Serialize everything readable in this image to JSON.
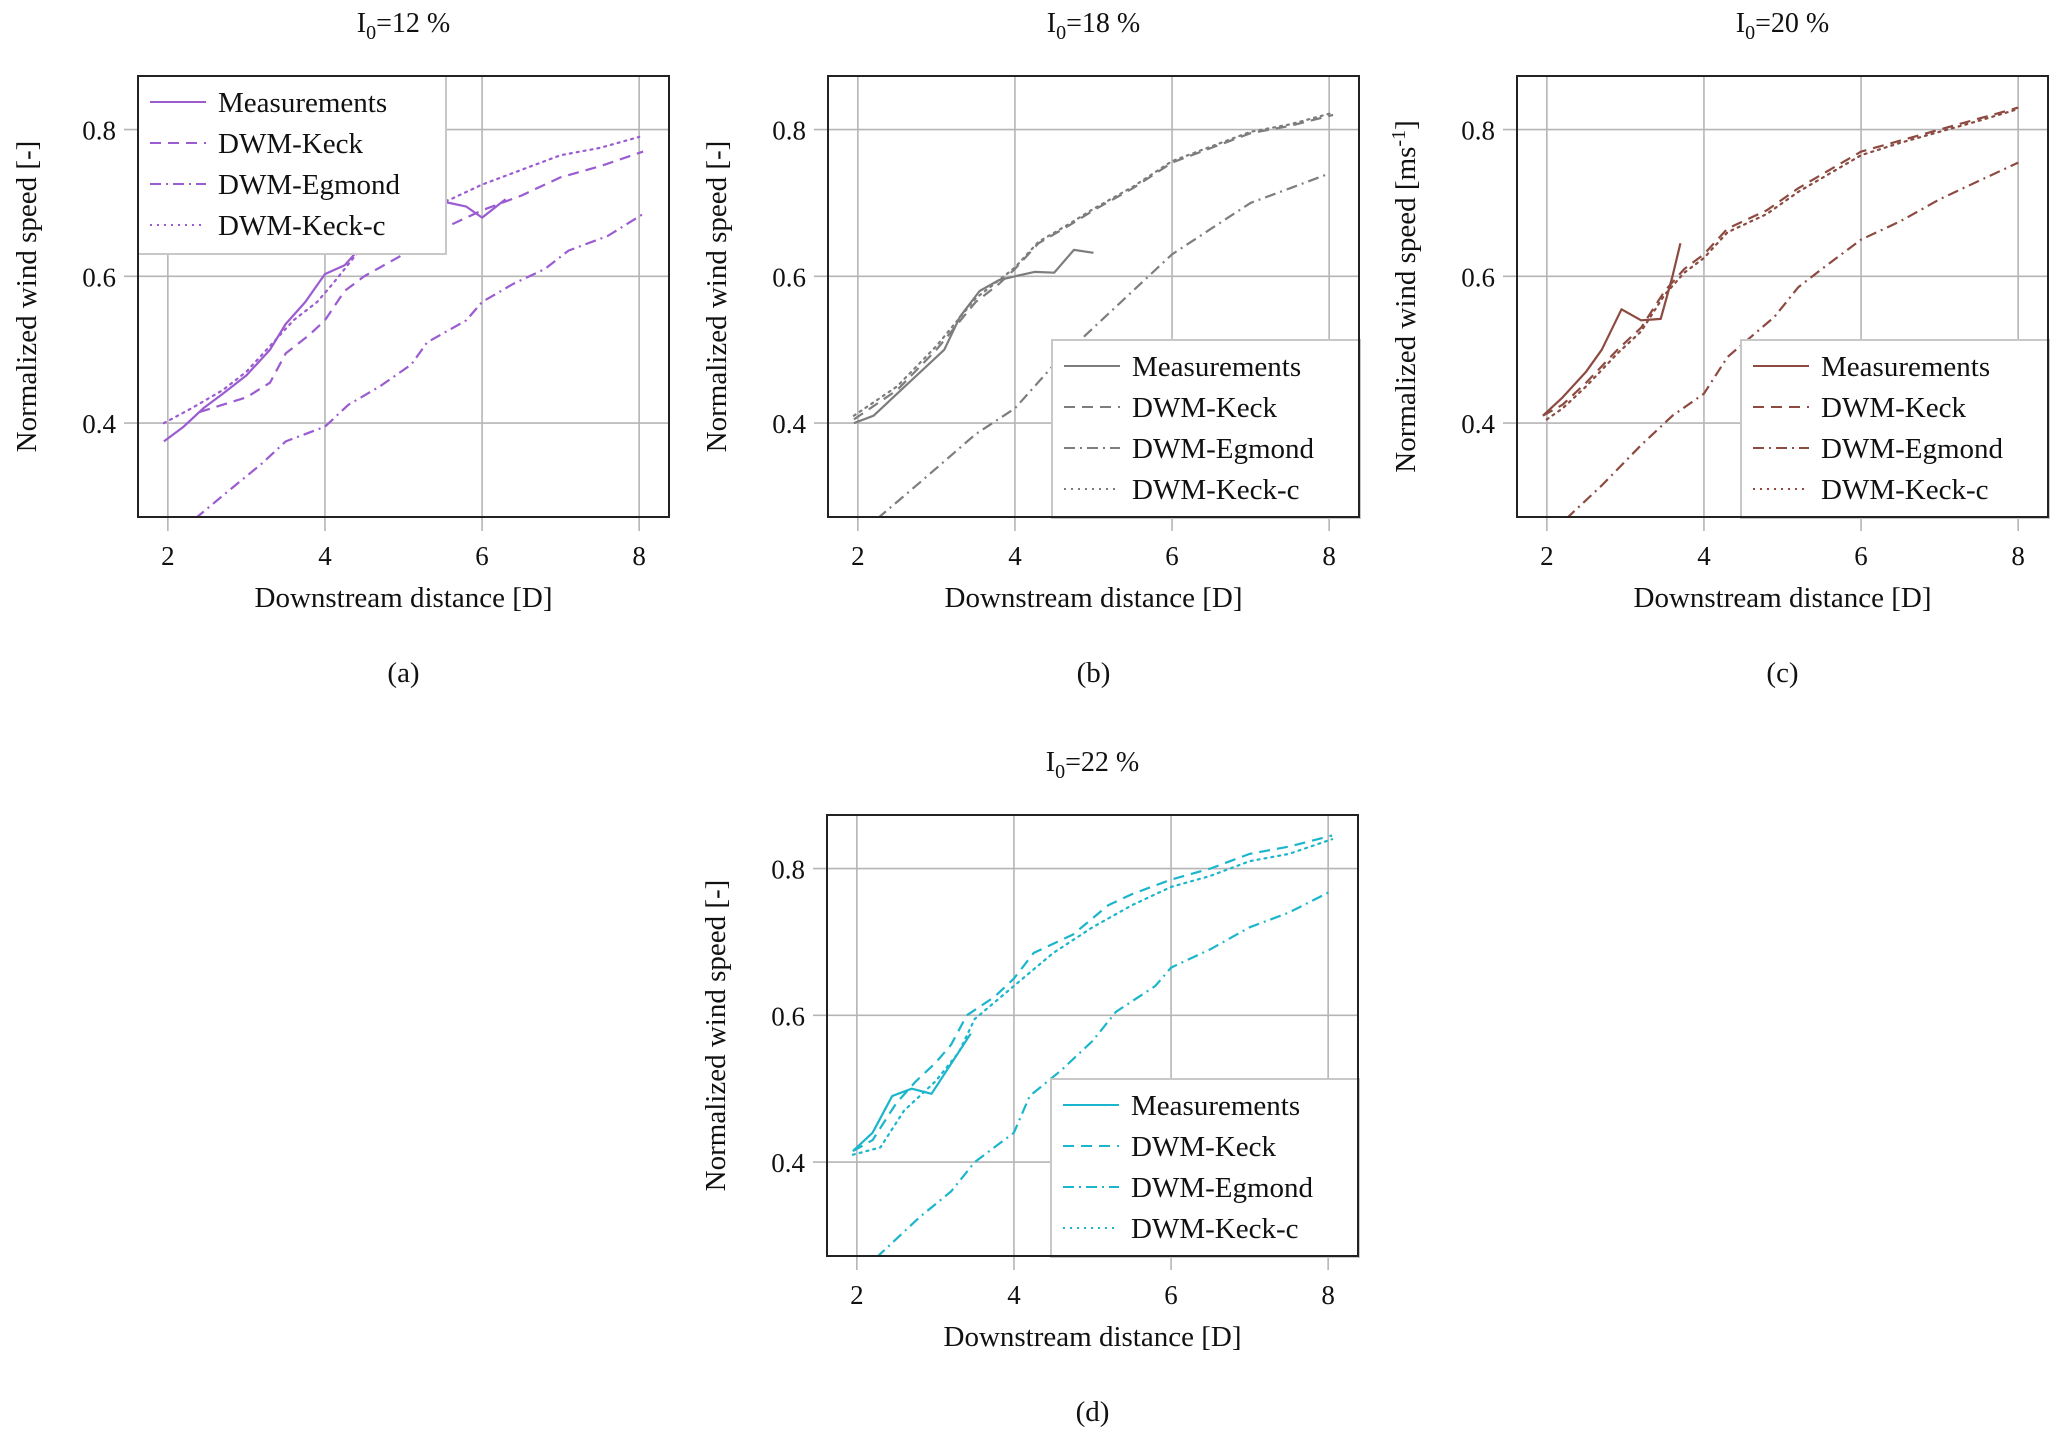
{
  "chart_data": [
    {
      "type": "line",
      "panel_label": "(a)",
      "title": "I0=12 %",
      "title_main": "I",
      "title_sub": "0",
      "title_rest": "=12 %",
      "xlabel": "Downstream distance [D]",
      "ylabel": "Normalized wind speed [-]",
      "ylabel_sup": "",
      "ylabel_end": "",
      "xlim": [
        1.62,
        8.38
      ],
      "ylim": [
        0.272,
        0.873
      ],
      "xticks": [
        2,
        4,
        6,
        8
      ],
      "yticks": [
        0.4,
        0.6,
        0.8
      ],
      "xtick_labels": [
        "2",
        "4",
        "6",
        "8"
      ],
      "ytick_labels": [
        "0.4",
        "0.6",
        "0.8"
      ],
      "grid": true,
      "legend_position": "top-left",
      "color": "#9b5bd1",
      "series": [
        {
          "name": "Measurements",
          "style": "solid",
          "x": [
            1.95,
            2.2,
            2.45,
            2.7,
            3.0,
            3.3,
            3.5,
            3.75,
            4.0,
            4.25,
            4.5,
            4.8,
            5.1,
            5.5,
            5.8,
            6.0,
            6.3
          ],
          "y": [
            0.375,
            0.395,
            0.42,
            0.44,
            0.465,
            0.5,
            0.535,
            0.565,
            0.603,
            0.615,
            0.645,
            0.67,
            0.69,
            0.702,
            0.695,
            0.68,
            0.705
          ]
        },
        {
          "name": "DWM-Keck",
          "style": "dashed",
          "x": [
            2.4,
            2.7,
            3.0,
            3.3,
            3.5,
            3.8,
            4.0,
            4.25,
            4.5,
            5.0,
            5.5,
            6.0,
            6.5,
            7.0,
            7.5,
            8.05
          ],
          "y": [
            0.415,
            0.425,
            0.435,
            0.455,
            0.495,
            0.52,
            0.54,
            0.58,
            0.6,
            0.63,
            0.665,
            0.69,
            0.71,
            0.735,
            0.75,
            0.77
          ]
        },
        {
          "name": "DWM-Egmond",
          "style": "dashdot",
          "x": [
            2.35,
            2.8,
            3.2,
            3.5,
            4.0,
            4.3,
            4.7,
            5.1,
            5.3,
            5.8,
            6.0,
            6.4,
            6.8,
            7.1,
            7.6,
            8.05
          ],
          "y": [
            0.27,
            0.31,
            0.345,
            0.375,
            0.395,
            0.425,
            0.45,
            0.48,
            0.51,
            0.54,
            0.565,
            0.59,
            0.61,
            0.635,
            0.655,
            0.685
          ]
        },
        {
          "name": "DWM-Keck-c",
          "style": "dotted",
          "x": [
            1.95,
            2.3,
            2.7,
            3.0,
            3.3,
            3.6,
            3.9,
            4.1,
            4.4,
            4.8,
            5.2,
            5.6,
            6.0,
            6.5,
            7.0,
            7.5,
            8.0
          ],
          "y": [
            0.4,
            0.42,
            0.445,
            0.47,
            0.505,
            0.54,
            0.565,
            0.59,
            0.63,
            0.665,
            0.69,
            0.705,
            0.725,
            0.745,
            0.765,
            0.775,
            0.79
          ]
        }
      ]
    },
    {
      "type": "line",
      "panel_label": "(b)",
      "title": "I0=18 %",
      "title_main": "I",
      "title_sub": "0",
      "title_rest": "=18 %",
      "xlabel": "Downstream distance [D]",
      "ylabel": "Normalized wind speed [-]",
      "ylabel_sup": "",
      "ylabel_end": "",
      "xlim": [
        1.62,
        8.38
      ],
      "ylim": [
        0.272,
        0.873
      ],
      "xticks": [
        2,
        4,
        6,
        8
      ],
      "yticks": [
        0.4,
        0.6,
        0.8
      ],
      "xtick_labels": [
        "2",
        "4",
        "6",
        "8"
      ],
      "ytick_labels": [
        "0.4",
        "0.6",
        "0.8"
      ],
      "grid": true,
      "legend_position": "bottom-right",
      "color": "#7d7d7d",
      "series": [
        {
          "name": "Measurements",
          "style": "solid",
          "x": [
            1.95,
            2.2,
            2.5,
            2.9,
            3.1,
            3.3,
            3.55,
            3.8,
            4.0,
            4.25,
            4.5,
            4.75,
            5.0
          ],
          "y": [
            0.4,
            0.41,
            0.44,
            0.48,
            0.5,
            0.545,
            0.58,
            0.595,
            0.6,
            0.606,
            0.605,
            0.636,
            0.632
          ]
        },
        {
          "name": "DWM-Keck",
          "style": "dashed",
          "x": [
            1.95,
            2.5,
            3.0,
            3.5,
            3.8,
            4.0,
            4.3,
            4.7,
            5.0,
            5.5,
            6.0,
            6.5,
            7.0,
            7.5,
            8.05
          ],
          "y": [
            0.405,
            0.445,
            0.5,
            0.565,
            0.59,
            0.61,
            0.645,
            0.67,
            0.69,
            0.72,
            0.755,
            0.775,
            0.795,
            0.805,
            0.82
          ]
        },
        {
          "name": "DWM-Egmond",
          "style": "dashdot",
          "x": [
            2.25,
            2.8,
            3.5,
            4.0,
            4.5,
            5.0,
            5.5,
            6.0,
            6.5,
            7.0,
            7.5,
            8.0
          ],
          "y": [
            0.27,
            0.32,
            0.385,
            0.42,
            0.48,
            0.53,
            0.58,
            0.63,
            0.665,
            0.7,
            0.72,
            0.74
          ]
        },
        {
          "name": "DWM-Keck-c",
          "style": "dotted",
          "x": [
            1.95,
            2.5,
            3.0,
            3.5,
            3.8,
            4.0,
            4.3,
            4.7,
            5.0,
            5.5,
            6.0,
            6.5,
            7.0,
            7.5,
            8.05
          ],
          "y": [
            0.41,
            0.45,
            0.505,
            0.57,
            0.595,
            0.612,
            0.647,
            0.672,
            0.692,
            0.722,
            0.757,
            0.777,
            0.797,
            0.807,
            0.823
          ]
        }
      ]
    },
    {
      "type": "line",
      "panel_label": "(c)",
      "title": "I0=20 %",
      "title_main": "I",
      "title_sub": "0",
      "title_rest": "=20 %",
      "xlabel": "Downstream distance [D]",
      "ylabel": "Normalized wind speed [ms-1]",
      "ylabel_sup": "-1",
      "ylabel_end": "]",
      "xlim": [
        1.62,
        8.38
      ],
      "ylim": [
        0.272,
        0.873
      ],
      "xticks": [
        2,
        4,
        6,
        8
      ],
      "yticks": [
        0.4,
        0.6,
        0.8
      ],
      "xtick_labels": [
        "2",
        "4",
        "6",
        "8"
      ],
      "ytick_labels": [
        "0.4",
        "0.6",
        "0.8"
      ],
      "grid": true,
      "legend_position": "bottom-right",
      "color": "#8c4a40",
      "series": [
        {
          "name": "Measurements",
          "style": "solid",
          "x": [
            1.95,
            2.2,
            2.5,
            2.7,
            2.95,
            3.2,
            3.45,
            3.6,
            3.7
          ],
          "y": [
            0.41,
            0.435,
            0.47,
            0.5,
            0.555,
            0.54,
            0.542,
            0.6,
            0.645
          ]
        },
        {
          "name": "DWM-Keck",
          "style": "dashed",
          "x": [
            1.95,
            2.2,
            2.5,
            2.9,
            3.2,
            3.5,
            3.75,
            4.0,
            4.3,
            4.8,
            5.2,
            5.6,
            6.0,
            6.5,
            7.0,
            7.5,
            8.0
          ],
          "y": [
            0.41,
            0.425,
            0.455,
            0.5,
            0.53,
            0.58,
            0.61,
            0.63,
            0.665,
            0.69,
            0.72,
            0.745,
            0.77,
            0.785,
            0.8,
            0.815,
            0.83
          ]
        },
        {
          "name": "DWM-Egmond",
          "style": "dashdot",
          "x": [
            2.25,
            2.7,
            3.2,
            3.6,
            4.0,
            4.3,
            4.9,
            5.2,
            5.5,
            6.0,
            6.5,
            7.0,
            7.5,
            8.0
          ],
          "y": [
            0.27,
            0.315,
            0.37,
            0.41,
            0.44,
            0.49,
            0.545,
            0.585,
            0.61,
            0.65,
            0.675,
            0.705,
            0.73,
            0.755
          ]
        },
        {
          "name": "DWM-Keck-c",
          "style": "dotted",
          "x": [
            2.0,
            2.2,
            2.5,
            2.9,
            3.2,
            3.5,
            3.75,
            4.0,
            4.3,
            4.8,
            5.2,
            5.6,
            6.0,
            6.5,
            7.0,
            7.5,
            8.0
          ],
          "y": [
            0.405,
            0.42,
            0.45,
            0.495,
            0.525,
            0.575,
            0.605,
            0.625,
            0.66,
            0.685,
            0.715,
            0.74,
            0.765,
            0.782,
            0.797,
            0.812,
            0.828
          ]
        }
      ]
    },
    {
      "type": "line",
      "panel_label": "(d)",
      "title": "I0=22 %",
      "title_main": "I",
      "title_sub": "0",
      "title_rest": "=22 %",
      "xlabel": "Downstream distance [D]",
      "ylabel": "Normalized wind speed [-]",
      "ylabel_sup": "",
      "ylabel_end": "",
      "xlim": [
        1.62,
        8.38
      ],
      "ylim": [
        0.272,
        0.873
      ],
      "xticks": [
        2,
        4,
        6,
        8
      ],
      "yticks": [
        0.4,
        0.6,
        0.8
      ],
      "xtick_labels": [
        "2",
        "4",
        "6",
        "8"
      ],
      "ytick_labels": [
        "0.4",
        "0.6",
        "0.8"
      ],
      "grid": true,
      "legend_position": "bottom-right",
      "color": "#1bb6cb",
      "series": [
        {
          "name": "Measurements",
          "style": "solid",
          "x": [
            1.95,
            2.2,
            2.45,
            2.7,
            2.95,
            3.45
          ],
          "y": [
            0.415,
            0.44,
            0.49,
            0.5,
            0.493,
            0.575
          ]
        },
        {
          "name": "DWM-Keck",
          "style": "dashed",
          "x": [
            1.95,
            2.2,
            2.5,
            2.75,
            3.0,
            3.2,
            3.4,
            3.75,
            4.0,
            4.25,
            4.75,
            5.2,
            5.5,
            6.0,
            6.5,
            7.0,
            7.5,
            8.05
          ],
          "y": [
            0.415,
            0.43,
            0.48,
            0.51,
            0.535,
            0.56,
            0.6,
            0.625,
            0.65,
            0.685,
            0.71,
            0.75,
            0.765,
            0.785,
            0.8,
            0.82,
            0.83,
            0.845
          ]
        },
        {
          "name": "DWM-Egmond",
          "style": "dashdot",
          "x": [
            2.25,
            2.8,
            3.2,
            3.5,
            4.0,
            4.2,
            4.6,
            5.0,
            5.3,
            5.8,
            6.0,
            6.5,
            7.0,
            7.5,
            8.05
          ],
          "y": [
            0.27,
            0.325,
            0.36,
            0.4,
            0.44,
            0.49,
            0.525,
            0.565,
            0.605,
            0.64,
            0.665,
            0.69,
            0.72,
            0.74,
            0.77
          ]
        },
        {
          "name": "DWM-Keck-c",
          "style": "dotted",
          "x": [
            1.95,
            2.3,
            2.6,
            3.0,
            3.3,
            3.5,
            4.0,
            4.5,
            5.0,
            5.5,
            6.0,
            6.5,
            7.0,
            7.5,
            8.05
          ],
          "y": [
            0.41,
            0.42,
            0.47,
            0.51,
            0.55,
            0.595,
            0.64,
            0.685,
            0.72,
            0.75,
            0.775,
            0.79,
            0.81,
            0.82,
            0.84
          ]
        }
      ]
    }
  ]
}
